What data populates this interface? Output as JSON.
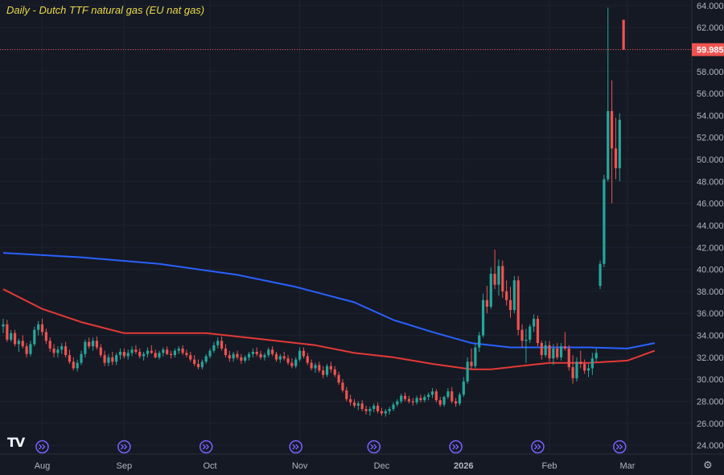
{
  "title": "Daily - Dutch TTF natural gas (EU nat gas)",
  "logo_text": "TV",
  "icons": {
    "settings": "gear-icon",
    "event_markers": "double-chevron-right-icon",
    "logo": "tradingview-logo-icon"
  },
  "colors": {
    "background": "#151924",
    "grid": "#1f2331",
    "up": "#26a69a",
    "down": "#ef5350",
    "ma_long": "#2962ff",
    "ma_short": "#e53935",
    "title": "#e8d84a",
    "axis_text": "#b2b5be",
    "price_line": "#ef5350",
    "event_marker": "#7b61ff"
  },
  "chart_data": {
    "type": "candlestick",
    "title": "Daily - Dutch TTF natural gas (EU nat gas)",
    "last_price": "59.985",
    "ylim": [
      23.2,
      64.5
    ],
    "y_ticks": [
      "24.000",
      "26.000",
      "28.000",
      "30.000",
      "32.000",
      "34.000",
      "36.000",
      "38.000",
      "40.000",
      "42.000",
      "44.000",
      "46.000",
      "48.000",
      "50.000",
      "52.000",
      "54.000",
      "56.000",
      "58.000",
      "60.000",
      "62.000",
      "64.000"
    ],
    "x_ticks": [
      "Aug",
      "Sep",
      "Oct",
      "Nov",
      "Dec",
      "2026",
      "Feb",
      "Mar"
    ],
    "x_tick_index": [
      10,
      31,
      53,
      76,
      97,
      118,
      140,
      160
    ],
    "event_marker_index": [
      10,
      31,
      52,
      75,
      95,
      116,
      137,
      158
    ],
    "candles": [
      [
        34.8,
        35.5,
        34.2,
        35.0
      ],
      [
        35.0,
        35.4,
        33.4,
        33.6
      ],
      [
        33.6,
        34.5,
        33.4,
        34.2
      ],
      [
        34.2,
        34.5,
        33.0,
        33.2
      ],
      [
        33.2,
        33.7,
        32.5,
        33.5
      ],
      [
        33.5,
        34.0,
        32.8,
        33.0
      ],
      [
        33.0,
        33.3,
        32.0,
        32.3
      ],
      [
        32.3,
        33.5,
        32.1,
        33.2
      ],
      [
        33.2,
        34.8,
        33.0,
        34.5
      ],
      [
        34.5,
        35.3,
        34.0,
        35.0
      ],
      [
        35.0,
        35.5,
        34.0,
        34.3
      ],
      [
        34.3,
        34.6,
        33.2,
        33.5
      ],
      [
        33.5,
        33.8,
        32.5,
        32.8
      ],
      [
        32.8,
        33.2,
        32.0,
        32.4
      ],
      [
        32.4,
        33.0,
        32.0,
        32.7
      ],
      [
        32.7,
        33.3,
        32.3,
        33.0
      ],
      [
        33.0,
        33.4,
        32.0,
        32.2
      ],
      [
        32.2,
        32.7,
        31.4,
        31.6
      ],
      [
        31.6,
        32.0,
        30.8,
        31.0
      ],
      [
        31.0,
        31.8,
        30.7,
        31.5
      ],
      [
        31.5,
        32.6,
        31.3,
        32.3
      ],
      [
        32.3,
        33.6,
        32.0,
        33.4
      ],
      [
        33.4,
        33.8,
        32.8,
        33.0
      ],
      [
        33.0,
        33.8,
        32.6,
        33.5
      ],
      [
        33.5,
        33.9,
        32.7,
        32.9
      ],
      [
        32.9,
        33.2,
        32.0,
        32.2
      ],
      [
        32.2,
        32.6,
        31.2,
        31.5
      ],
      [
        31.5,
        32.3,
        31.2,
        32.0
      ],
      [
        32.0,
        32.5,
        31.3,
        31.6
      ],
      [
        31.6,
        32.4,
        31.3,
        32.2
      ],
      [
        32.2,
        32.8,
        31.8,
        32.5
      ],
      [
        32.5,
        32.8,
        31.9,
        32.1
      ],
      [
        32.1,
        32.7,
        31.8,
        32.4
      ],
      [
        32.4,
        33.0,
        32.1,
        32.7
      ],
      [
        32.7,
        33.1,
        32.3,
        32.5
      ],
      [
        32.5,
        32.8,
        31.9,
        32.1
      ],
      [
        32.1,
        32.5,
        31.7,
        32.3
      ],
      [
        32.3,
        32.9,
        32.0,
        32.6
      ],
      [
        32.6,
        33.1,
        32.3,
        32.4
      ],
      [
        32.4,
        32.7,
        31.9,
        32.0
      ],
      [
        32.0,
        32.6,
        31.8,
        32.4
      ],
      [
        32.4,
        32.9,
        32.1,
        32.7
      ],
      [
        32.7,
        33.0,
        32.2,
        32.3
      ],
      [
        32.3,
        32.6,
        31.9,
        32.2
      ],
      [
        32.2,
        32.8,
        32.0,
        32.6
      ],
      [
        32.6,
        33.0,
        32.3,
        32.8
      ],
      [
        32.8,
        33.1,
        32.2,
        32.4
      ],
      [
        32.4,
        32.7,
        32.0,
        32.2
      ],
      [
        32.2,
        32.5,
        31.6,
        31.8
      ],
      [
        31.8,
        32.2,
        31.2,
        31.4
      ],
      [
        31.4,
        31.8,
        30.9,
        31.1
      ],
      [
        31.1,
        31.8,
        30.9,
        31.6
      ],
      [
        31.6,
        32.3,
        31.4,
        32.1
      ],
      [
        32.1,
        32.8,
        31.9,
        32.6
      ],
      [
        32.6,
        33.4,
        32.4,
        33.1
      ],
      [
        33.1,
        33.8,
        32.8,
        33.5
      ],
      [
        33.5,
        33.9,
        32.6,
        32.8
      ],
      [
        32.8,
        33.2,
        32.0,
        32.2
      ],
      [
        32.2,
        32.6,
        31.6,
        31.9
      ],
      [
        31.9,
        32.5,
        31.6,
        32.3
      ],
      [
        32.3,
        32.6,
        31.8,
        32.0
      ],
      [
        32.0,
        32.3,
        31.4,
        31.7
      ],
      [
        31.7,
        32.2,
        31.5,
        32.0
      ],
      [
        32.0,
        32.5,
        31.7,
        32.3
      ],
      [
        32.3,
        32.8,
        32.0,
        32.5
      ],
      [
        32.5,
        32.9,
        32.1,
        32.3
      ],
      [
        32.3,
        32.6,
        31.8,
        32.0
      ],
      [
        32.0,
        32.4,
        31.7,
        32.2
      ],
      [
        32.2,
        32.9,
        32.0,
        32.7
      ],
      [
        32.7,
        33.0,
        32.1,
        32.3
      ],
      [
        32.3,
        32.5,
        31.6,
        31.8
      ],
      [
        31.8,
        32.3,
        31.5,
        32.1
      ],
      [
        32.1,
        32.5,
        31.7,
        31.9
      ],
      [
        31.9,
        32.2,
        31.3,
        31.5
      ],
      [
        31.5,
        31.9,
        31.0,
        31.2
      ],
      [
        31.2,
        32.0,
        31.0,
        31.8
      ],
      [
        31.8,
        32.9,
        31.6,
        32.6
      ],
      [
        32.6,
        32.9,
        31.9,
        32.1
      ],
      [
        32.1,
        32.4,
        31.3,
        31.5
      ],
      [
        31.5,
        31.8,
        30.8,
        31.0
      ],
      [
        31.0,
        31.5,
        30.6,
        31.3
      ],
      [
        31.3,
        31.6,
        30.6,
        30.8
      ],
      [
        30.8,
        31.2,
        30.1,
        30.4
      ],
      [
        30.4,
        31.4,
        30.2,
        31.2
      ],
      [
        31.2,
        31.6,
        30.6,
        30.9
      ],
      [
        30.9,
        31.2,
        30.2,
        30.4
      ],
      [
        30.4,
        30.7,
        29.5,
        29.7
      ],
      [
        29.7,
        30.0,
        28.8,
        29.0
      ],
      [
        29.0,
        29.3,
        28.0,
        28.2
      ],
      [
        28.2,
        28.6,
        27.6,
        27.9
      ],
      [
        27.9,
        28.2,
        27.4,
        27.6
      ],
      [
        27.6,
        28.0,
        27.2,
        27.8
      ],
      [
        27.8,
        28.1,
        27.1,
        27.3
      ],
      [
        27.3,
        27.6,
        26.8,
        27.1
      ],
      [
        27.1,
        27.5,
        26.7,
        27.3
      ],
      [
        27.3,
        27.8,
        27.0,
        27.6
      ],
      [
        27.6,
        27.9,
        26.9,
        27.1
      ],
      [
        27.1,
        27.4,
        26.7,
        26.9
      ],
      [
        26.9,
        27.3,
        26.6,
        27.1
      ],
      [
        27.1,
        27.5,
        26.8,
        27.3
      ],
      [
        27.3,
        27.9,
        27.1,
        27.7
      ],
      [
        27.7,
        28.2,
        27.5,
        28.0
      ],
      [
        28.0,
        28.7,
        27.8,
        28.5
      ],
      [
        28.5,
        28.8,
        28.0,
        28.2
      ],
      [
        28.2,
        28.5,
        27.8,
        28.0
      ],
      [
        28.0,
        28.3,
        27.6,
        27.9
      ],
      [
        27.9,
        28.5,
        27.7,
        28.3
      ],
      [
        28.3,
        28.6,
        27.9,
        28.1
      ],
      [
        28.1,
        28.6,
        27.9,
        28.4
      ],
      [
        28.4,
        28.8,
        28.1,
        28.6
      ],
      [
        28.6,
        29.2,
        28.3,
        28.9
      ],
      [
        28.9,
        29.1,
        27.9,
        28.1
      ],
      [
        28.1,
        28.4,
        27.5,
        27.7
      ],
      [
        27.7,
        28.5,
        27.5,
        28.4
      ],
      [
        28.4,
        29.2,
        28.2,
        28.9
      ],
      [
        28.9,
        29.3,
        27.8,
        28.0
      ],
      [
        28.0,
        28.3,
        27.5,
        27.8
      ],
      [
        27.8,
        28.8,
        27.6,
        28.6
      ],
      [
        28.6,
        30.2,
        28.4,
        29.8
      ],
      [
        29.8,
        32.0,
        29.6,
        31.6
      ],
      [
        31.6,
        32.8,
        30.9,
        31.2
      ],
      [
        31.2,
        33.2,
        31.0,
        32.9
      ],
      [
        32.9,
        34.3,
        32.5,
        34.0
      ],
      [
        34.0,
        37.8,
        33.8,
        37.2
      ],
      [
        37.2,
        38.5,
        36.0,
        36.6
      ],
      [
        36.6,
        40.2,
        36.4,
        39.6
      ],
      [
        39.6,
        41.8,
        38.2,
        38.6
      ],
      [
        38.6,
        40.9,
        37.6,
        40.3
      ],
      [
        40.3,
        40.8,
        37.4,
        38.0
      ],
      [
        38.0,
        39.0,
        36.7,
        37.2
      ],
      [
        37.2,
        38.4,
        35.6,
        36.3
      ],
      [
        36.3,
        39.4,
        36.0,
        39.0
      ],
      [
        39.0,
        39.4,
        34.0,
        34.5
      ],
      [
        34.5,
        35.0,
        32.9,
        33.5
      ],
      [
        33.5,
        34.6,
        31.5,
        33.6
      ],
      [
        33.6,
        35.0,
        33.3,
        34.8
      ],
      [
        34.8,
        35.9,
        34.3,
        35.5
      ],
      [
        35.5,
        35.8,
        33.0,
        33.3
      ],
      [
        33.3,
        33.5,
        31.8,
        32.2
      ],
      [
        32.2,
        33.5,
        32.0,
        33.1
      ],
      [
        33.1,
        33.5,
        31.6,
        31.9
      ],
      [
        31.9,
        33.2,
        31.3,
        32.8
      ],
      [
        32.8,
        33.3,
        31.8,
        32.0
      ],
      [
        32.0,
        33.3,
        31.7,
        33.0
      ],
      [
        33.0,
        34.3,
        32.6,
        32.8
      ],
      [
        32.8,
        33.1,
        30.8,
        31.1
      ],
      [
        31.1,
        32.2,
        29.6,
        30.1
      ],
      [
        30.1,
        32.0,
        29.8,
        31.6
      ],
      [
        31.6,
        32.6,
        31.0,
        31.4
      ],
      [
        31.4,
        31.8,
        30.5,
        30.8
      ],
      [
        30.8,
        31.4,
        30.2,
        31.0
      ],
      [
        31.0,
        32.4,
        30.4,
        31.9
      ],
      [
        31.9,
        32.8,
        31.6,
        32.4
      ],
      [
        38.5,
        40.8,
        38.2,
        40.5
      ],
      [
        40.5,
        48.6,
        40.2,
        48.2
      ],
      [
        48.2,
        63.8,
        48.0,
        54.4
      ],
      [
        54.4,
        57.2,
        46.0,
        51.0
      ],
      [
        51.0,
        53.8,
        48.2,
        49.2
      ],
      [
        49.2,
        54.2,
        48.0,
        53.6
      ],
      [
        62.7,
        62.7,
        59.985,
        59.985
      ]
    ],
    "ma_long": [
      [
        0,
        41.5
      ],
      [
        20,
        41.1
      ],
      [
        40,
        40.5
      ],
      [
        60,
        39.5
      ],
      [
        75,
        38.4
      ],
      [
        90,
        37.0
      ],
      [
        100,
        35.4
      ],
      [
        110,
        34.3
      ],
      [
        120,
        33.3
      ],
      [
        130,
        32.9
      ],
      [
        140,
        32.9
      ],
      [
        150,
        32.9
      ],
      [
        160,
        32.8
      ],
      [
        167,
        33.3
      ]
    ],
    "ma_short": [
      [
        0,
        38.2
      ],
      [
        10,
        36.4
      ],
      [
        20,
        35.2
      ],
      [
        31,
        34.2
      ],
      [
        52,
        34.2
      ],
      [
        65,
        33.7
      ],
      [
        80,
        33.1
      ],
      [
        90,
        32.4
      ],
      [
        100,
        32.0
      ],
      [
        110,
        31.4
      ],
      [
        120,
        30.9
      ],
      [
        125,
        30.9
      ],
      [
        130,
        31.1
      ],
      [
        135,
        31.3
      ],
      [
        140,
        31.5
      ],
      [
        150,
        31.5
      ],
      [
        160,
        31.7
      ],
      [
        167,
        32.6
      ]
    ]
  }
}
